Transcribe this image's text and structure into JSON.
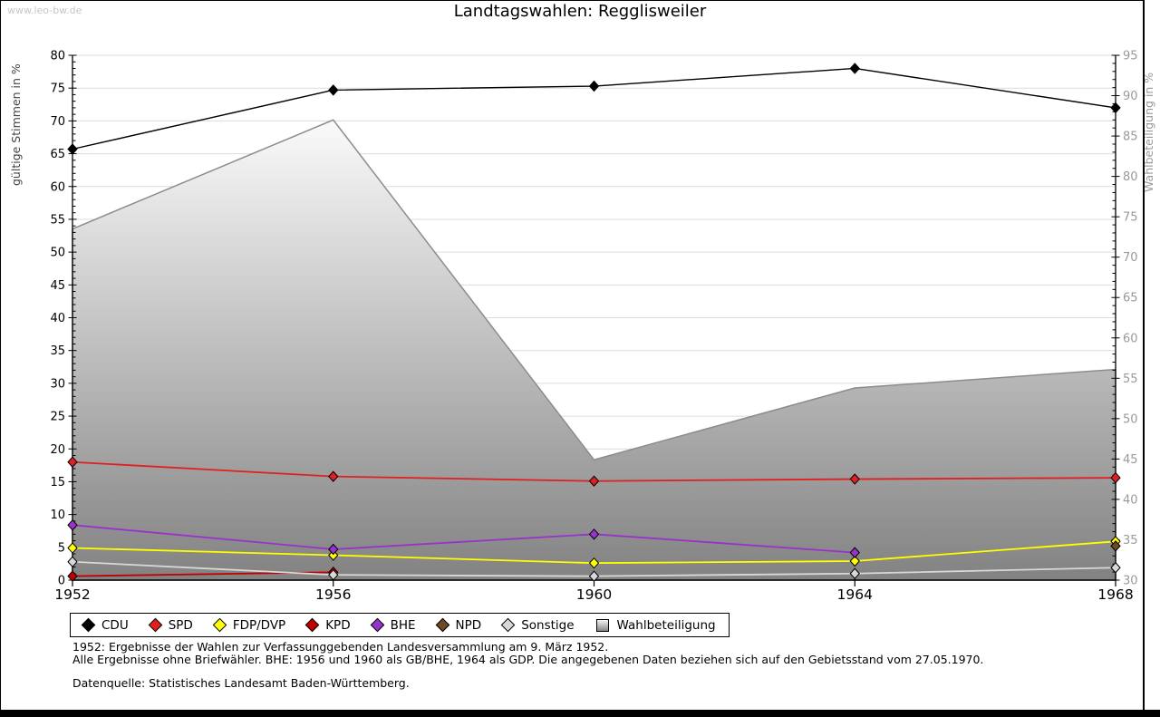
{
  "site": {
    "watermark": "www.leo-bw.de"
  },
  "chart_data": {
    "type": "line",
    "title": "Landtagswahlen: Regglisweiler",
    "grid": "horizontal",
    "legend_position": "bottom",
    "x_categories": [
      1952,
      1956,
      1960,
      1964,
      1968
    ],
    "left_axis": {
      "label": "gültige Stimmen in %",
      "min": 0,
      "max": 80,
      "major": 5,
      "minor": 1,
      "tick_labels": [
        0,
        5,
        10,
        15,
        20,
        25,
        30,
        35,
        40,
        45,
        50,
        55,
        60,
        65,
        70,
        75,
        80
      ]
    },
    "right_axis": {
      "label": "Wahlbeteiligung in %",
      "min": 30,
      "max": 95,
      "major": 5,
      "minor": 1,
      "tick_labels": [
        30,
        35,
        40,
        45,
        50,
        55,
        60,
        65,
        70,
        75,
        80,
        85,
        90,
        95
      ]
    },
    "series": [
      {
        "name": "CDU",
        "color": "#000000",
        "line_width": 1.4,
        "values": [
          65.7,
          74.7,
          75.3,
          78.0,
          72.0
        ]
      },
      {
        "name": "SPD",
        "color": "#e02020",
        "line_width": 1.8,
        "values": [
          18.0,
          15.8,
          15.1,
          15.4,
          15.6
        ]
      },
      {
        "name": "FDP/DVP",
        "color": "#ffff00",
        "line_width": 1.8,
        "values": [
          4.9,
          3.8,
          2.6,
          2.9,
          5.9
        ]
      },
      {
        "name": "KPD",
        "color": "#c00000",
        "line_width": 1.8,
        "values": [
          0.6,
          1.2,
          null,
          null,
          null
        ]
      },
      {
        "name": "BHE",
        "color": "#9932cc",
        "line_width": 1.8,
        "values": [
          8.4,
          4.7,
          7.0,
          4.2,
          null
        ]
      },
      {
        "name": "NPD",
        "color": "#6b4a24",
        "line_width": 1.8,
        "values": [
          null,
          null,
          null,
          null,
          5.2
        ]
      },
      {
        "name": "Sonstige",
        "color": "#d8d8d8",
        "line_width": 1.8,
        "values": [
          2.8,
          0.8,
          0.6,
          1.0,
          1.9
        ]
      }
    ],
    "area_series": {
      "name": "Wahlbeteiligung",
      "axis": "right",
      "values": [
        73.5,
        87.0,
        44.9,
        53.8,
        56.1
      ],
      "fill_top": "#fafafa",
      "fill_bottom": "#828282",
      "stroke": "#8c8c8c"
    }
  },
  "legend": {
    "items": [
      {
        "label": "CDU",
        "type": "diamond",
        "color": "#000000"
      },
      {
        "label": "SPD",
        "type": "diamond",
        "color": "#e02020"
      },
      {
        "label": "FDP/DVP",
        "type": "diamond",
        "color": "#ffff00"
      },
      {
        "label": "KPD",
        "type": "diamond",
        "color": "#c00000"
      },
      {
        "label": "BHE",
        "type": "diamond",
        "color": "#9932cc"
      },
      {
        "label": "NPD",
        "type": "diamond",
        "color": "#6b4a24"
      },
      {
        "label": "Sonstige",
        "type": "diamond",
        "color": "#d8d8d8"
      },
      {
        "label": "Wahlbeteiligung",
        "type": "area",
        "color": "#b5b5b5"
      }
    ]
  },
  "footnotes": {
    "line1": "1952: Ergebnisse der Wahlen zur Verfassunggebenden Landesversammlung am 9. März 1952.",
    "line2": "Alle Ergebnisse ohne Briefwähler. BHE: 1956 und 1960 als GB/BHE, 1964 als GDP. Die angegebenen Daten beziehen sich auf den Gebietsstand vom 27.05.1970.",
    "source": "Datenquelle: Statistisches Landesamt Baden-Württemberg."
  },
  "style": {
    "gridline_color": "#dcdcdc",
    "left_tick_label_color": "#000000",
    "right_tick_label_color": "#999999",
    "left_axis_title_color": "#444444",
    "right_axis_title_color": "#999999"
  }
}
